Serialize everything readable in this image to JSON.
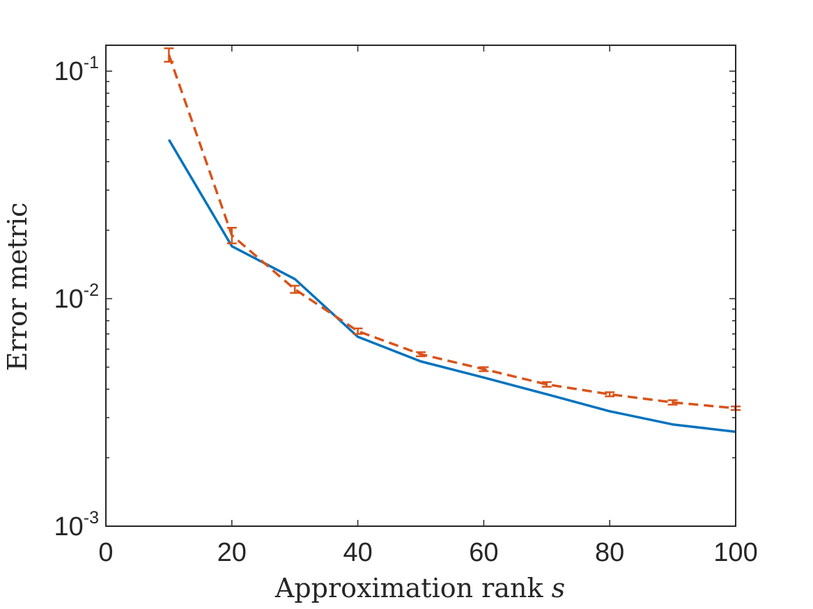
{
  "chart_data": {
    "type": "line",
    "xlabel": "Approximation rank",
    "xlabel_symbol": "s",
    "ylabel": "Error metric",
    "xlim": [
      0,
      100
    ],
    "ylim": [
      0.001,
      0.13
    ],
    "yscale": "log",
    "grid": false,
    "legend": "none",
    "x_ticks": [
      0,
      20,
      40,
      60,
      80,
      100
    ],
    "y_ticks": [
      {
        "value": 0.1,
        "base": "10",
        "exp": "-1"
      },
      {
        "value": 0.01,
        "base": "10",
        "exp": "-2"
      },
      {
        "value": 0.001,
        "base": "10",
        "exp": "-3"
      }
    ],
    "series": [
      {
        "color": "#0072BD",
        "style": "solid",
        "x": [
          10,
          20,
          30,
          40,
          50,
          60,
          70,
          80,
          90,
          100
        ],
        "y": [
          0.05,
          0.017,
          0.0122,
          0.0068,
          0.0053,
          0.0045,
          0.0038,
          0.0032,
          0.0028,
          0.0026
        ]
      },
      {
        "color": "#D95319",
        "style": "dashed",
        "x": [
          10,
          20,
          30,
          40,
          50,
          60,
          70,
          80,
          90,
          100
        ],
        "y": [
          0.118,
          0.019,
          0.011,
          0.0072,
          0.0057,
          0.0049,
          0.0042,
          0.0038,
          0.0035,
          0.0033
        ],
        "err": [
          0.008,
          0.0015,
          0.0004,
          0.0002,
          0.00012,
          0.0001,
          0.0001,
          8e-05,
          8e-05,
          6e-05
        ]
      }
    ]
  }
}
